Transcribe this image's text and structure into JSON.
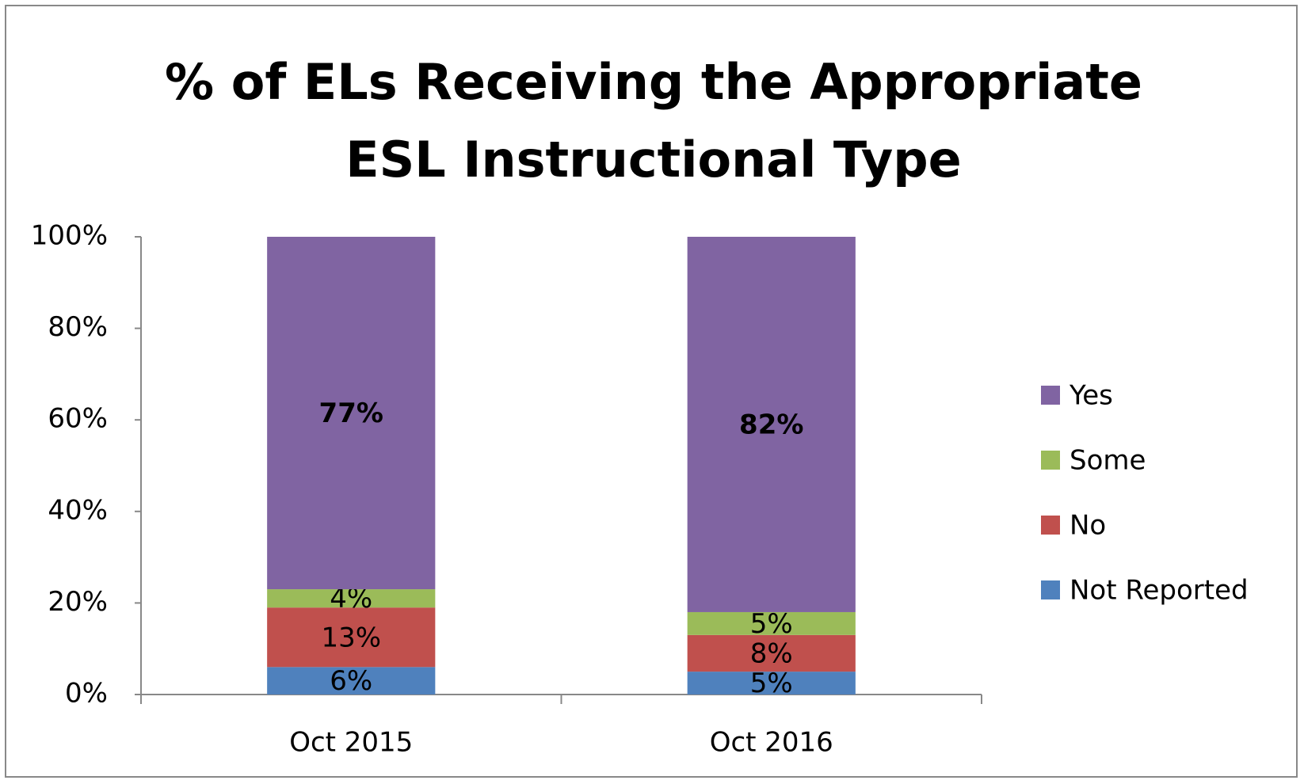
{
  "chart_data": {
    "type": "stacked_bar",
    "title": "% of ELs Receiving the Appropriate ESL Instructional Type",
    "categories": [
      "Oct 2015",
      "Oct 2016"
    ],
    "series": [
      {
        "name": "Not Reported",
        "color": "#4f81bd",
        "values": [
          6,
          5
        ],
        "value_labels": [
          "6%",
          "5%"
        ]
      },
      {
        "name": "No",
        "color": "#c0504d",
        "values": [
          13,
          8
        ],
        "value_labels": [
          "13%",
          "8%"
        ]
      },
      {
        "name": "Some",
        "color": "#9bbb59",
        "values": [
          4,
          5
        ],
        "value_labels": [
          "4%",
          "5%"
        ]
      },
      {
        "name": "Yes",
        "color": "#8064a2",
        "values": [
          77,
          82
        ],
        "value_labels": [
          "77%",
          "82%"
        ]
      }
    ],
    "ylim": [
      0,
      100
    ],
    "yticks": [
      {
        "value": 0,
        "label": "0%"
      },
      {
        "value": 20,
        "label": "20%"
      },
      {
        "value": 40,
        "label": "40%"
      },
      {
        "value": 60,
        "label": "60%"
      },
      {
        "value": 80,
        "label": "80%"
      },
      {
        "value": 100,
        "label": "100%"
      }
    ],
    "legend": "right"
  }
}
